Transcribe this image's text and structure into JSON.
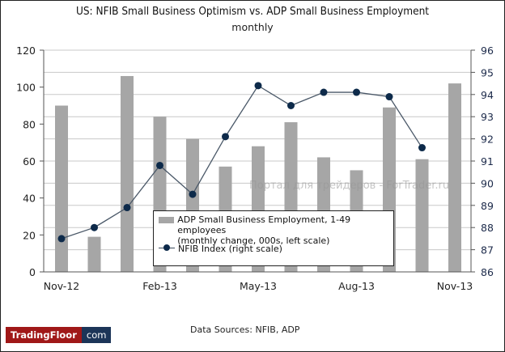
{
  "chart_data": {
    "type": "bar+line",
    "title": "US: NFIB Small Business Optimism vs. ADP Small Business Employment",
    "subtitle": "monthly",
    "categories": [
      "Nov-12",
      "Dec-12",
      "Jan-13",
      "Feb-13",
      "Mar-13",
      "Apr-13",
      "May-13",
      "Jun-13",
      "Jul-13",
      "Aug-13",
      "Sep-13",
      "Oct-13",
      "Nov-13"
    ],
    "x_tick_labels": [
      "Nov-12",
      "Feb-13",
      "May-13",
      "Aug-13",
      "Nov-13"
    ],
    "left_axis": {
      "ylim": [
        0,
        120
      ],
      "ticks": [
        "0",
        "20",
        "40",
        "60",
        "80",
        "100",
        "120"
      ]
    },
    "right_axis": {
      "ylim": [
        86,
        96
      ],
      "ticks": [
        "86",
        "87",
        "88",
        "89",
        "90",
        "91",
        "92",
        "93",
        "94",
        "95",
        "96"
      ]
    },
    "grid": true,
    "legend_placement": "bottom-center",
    "series": [
      {
        "name": "ADP Small Business Employment, 1-49 employees",
        "name_line2": "(monthly change, 000s, left scale)",
        "type": "bar",
        "axis": "left",
        "color": "#a6a6a6",
        "values": [
          90,
          19,
          106,
          84,
          72,
          57,
          68,
          81,
          62,
          55,
          89,
          61,
          102
        ]
      },
      {
        "name": "NFIB Index (right scale)",
        "type": "line",
        "axis": "right",
        "color": "#0d2a4a",
        "values": [
          87.5,
          88.0,
          88.9,
          90.8,
          89.5,
          92.1,
          94.4,
          93.5,
          94.1,
          94.1,
          93.9,
          91.6,
          null
        ]
      }
    ]
  },
  "footer": {
    "source": "Data Sources: NFIB, ADP",
    "logo_left": "TradingFloor",
    "logo_right": "com"
  },
  "watermark": "Портал для трейдеров - ForTrader.ru"
}
